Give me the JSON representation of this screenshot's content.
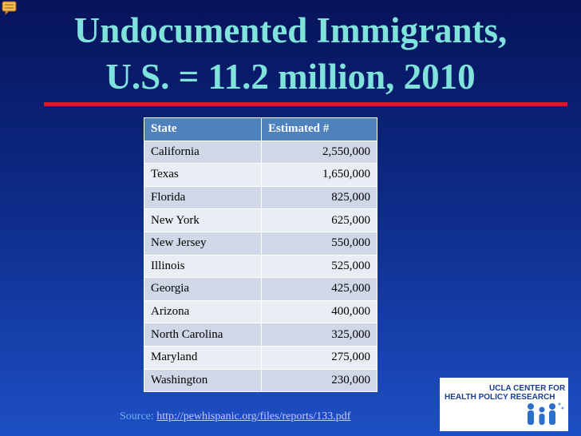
{
  "header": {
    "title": [
      "Undocumented Immigrants,",
      "U.S. = 11.2 million, 2010"
    ]
  },
  "table": {
    "columns": [
      "State",
      "Estimated #"
    ],
    "rows": [
      [
        "California",
        "2,550,000"
      ],
      [
        "Texas",
        "1,650,000"
      ],
      [
        "Florida",
        "825,000"
      ],
      [
        "New York",
        "625,000"
      ],
      [
        "New Jersey",
        "550,000"
      ],
      [
        "Illinois",
        "525,000"
      ],
      [
        "Georgia",
        "425,000"
      ],
      [
        "Arizona",
        "400,000"
      ],
      [
        "North Carolina",
        "325,000"
      ],
      [
        "Maryland",
        "275,000"
      ],
      [
        "Washington",
        "230,000"
      ]
    ]
  },
  "source": {
    "label": "Source:",
    "url": "http://pewhispanic.org/files/reports/133.pdf"
  },
  "logo": {
    "line1": "UCLA CENTER FOR",
    "line2": "HEALTH POLICY RESEARCH"
  }
}
